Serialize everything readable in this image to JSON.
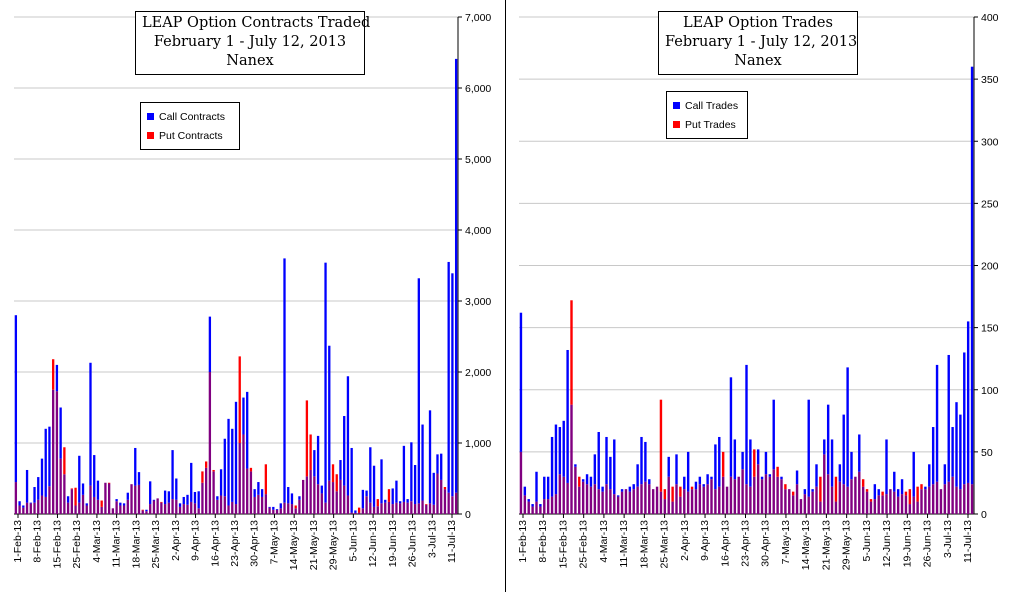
{
  "colors": {
    "call": "#0000ff",
    "put": "#ff0000",
    "overlap": "#800080",
    "grid": "#c8c8c8"
  },
  "chart_data": [
    {
      "type": "bar",
      "title_lines": [
        "LEAP Option Contracts Traded",
        "February 1 - July 12, 2013",
        "Nanex"
      ],
      "legend": {
        "placement": "top-left",
        "entries": [
          "Call Contracts",
          "Put Contracts"
        ]
      },
      "ylim": [
        0,
        7000
      ],
      "yticks": [
        "0",
        "1,000",
        "2,000",
        "3,000",
        "4,000",
        "5,000",
        "6,000",
        "7,000"
      ],
      "ytick_values": [
        0,
        1000,
        2000,
        3000,
        4000,
        5000,
        6000,
        7000
      ],
      "xtick_labels": [
        "1-Feb-13",
        "8-Feb-13",
        "15-Feb-13",
        "25-Feb-13",
        "4-Mar-13",
        "11-Mar-13",
        "18-Mar-13",
        "25-Mar-13",
        "2-Apr-13",
        "9-Apr-13",
        "16-Apr-13",
        "23-Apr-13",
        "30-Apr-13",
        "7-May-13",
        "14-May-13",
        "21-May-13",
        "29-May-13",
        "5-Jun-13",
        "12-Jun-13",
        "19-Jun-13",
        "26-Jun-13",
        "3-Jul-13",
        "11-Jul-13"
      ],
      "grid": true,
      "series": [
        {
          "name": "Call Contracts",
          "values": [
            2800,
            180,
            120,
            620,
            160,
            380,
            520,
            780,
            1200,
            1230,
            1750,
            2100,
            1500,
            560,
            250,
            350,
            120,
            820,
            430,
            150,
            2130,
            830,
            470,
            100,
            440,
            430,
            80,
            210,
            160,
            150,
            300,
            420,
            930,
            590,
            50,
            60,
            460,
            200,
            220,
            160,
            330,
            320,
            900,
            500,
            150,
            240,
            270,
            720,
            310,
            320,
            440,
            650,
            2780,
            600,
            250,
            630,
            1060,
            1340,
            1200,
            1580,
            1000,
            1640,
            1720,
            600,
            350,
            450,
            350,
            280,
            100,
            100,
            70,
            150,
            3600,
            380,
            290,
            80,
            250,
            480,
            530,
            620,
            900,
            1100,
            400,
            3540,
            2370,
            450,
            320,
            760,
            1380,
            1940,
            930,
            50,
            20,
            340,
            330,
            940,
            680,
            110,
            770,
            200,
            170,
            360,
            470,
            180,
            960,
            210,
            1010,
            690,
            3320,
            1260,
            130,
            1460,
            580,
            840,
            850,
            350,
            3550,
            3390,
            6410
          ]
        },
        {
          "name": "Put Contracts",
          "values": [
            450,
            120,
            90,
            160,
            150,
            160,
            200,
            260,
            240,
            390,
            2180,
            1730,
            780,
            940,
            160,
            360,
            370,
            160,
            270,
            120,
            400,
            240,
            200,
            190,
            440,
            440,
            80,
            180,
            120,
            120,
            200,
            420,
            400,
            410,
            60,
            40,
            140,
            190,
            220,
            170,
            140,
            160,
            210,
            200,
            100,
            140,
            130,
            170,
            150,
            80,
            600,
            740,
            2000,
            620,
            200,
            260,
            250,
            120,
            170,
            140,
            2220,
            1120,
            640,
            650,
            240,
            270,
            240,
            700,
            90,
            60,
            60,
            80,
            160,
            150,
            140,
            120,
            200,
            480,
            1600,
            1120,
            530,
            420,
            290,
            160,
            470,
            700,
            560,
            480,
            400,
            260,
            20,
            15,
            90,
            80,
            250,
            160,
            100,
            210,
            150,
            160,
            350,
            140,
            160,
            150,
            170,
            160,
            180,
            140,
            150,
            190,
            140,
            150,
            130,
            570,
            480,
            380,
            300,
            250,
            300
          ]
        }
      ]
    },
    {
      "type": "bar",
      "title_lines": [
        "LEAP Option Trades",
        "February 1 - July 12, 2013",
        "Nanex"
      ],
      "legend": {
        "placement": "top-left",
        "entries": [
          "Call Trades",
          "Put Trades"
        ]
      },
      "ylim": [
        0,
        400
      ],
      "yticks": [
        "0",
        "50",
        "100",
        "150",
        "200",
        "250",
        "300",
        "350",
        "400"
      ],
      "ytick_values": [
        0,
        50,
        100,
        150,
        200,
        250,
        300,
        350,
        400
      ],
      "xtick_labels": [
        "1-Feb-13",
        "8-Feb-13",
        "15-Feb-13",
        "25-Feb-13",
        "4-Mar-13",
        "11-Mar-13",
        "18-Mar-13",
        "25-Mar-13",
        "2-Apr-13",
        "9-Apr-13",
        "16-Apr-13",
        "23-Apr-13",
        "30-Apr-13",
        "7-May-13",
        "14-May-13",
        "21-May-13",
        "29-May-13",
        "5-Jun-13",
        "12-Jun-13",
        "19-Jun-13",
        "26-Jun-13",
        "3-Jul-13",
        "11-Jul-13"
      ],
      "grid": true,
      "series": [
        {
          "name": "Call Trades",
          "values": [
            162,
            22,
            12,
            8,
            34,
            8,
            30,
            30,
            62,
            72,
            70,
            75,
            132,
            88,
            40,
            22,
            28,
            32,
            30,
            48,
            66,
            22,
            62,
            46,
            60,
            15,
            20,
            20,
            22,
            24,
            40,
            62,
            58,
            28,
            20,
            22,
            18,
            12,
            46,
            10,
            48,
            14,
            30,
            50,
            20,
            26,
            30,
            24,
            32,
            30,
            56,
            62,
            30,
            22,
            110,
            60,
            30,
            50,
            120,
            60,
            30,
            52,
            30,
            50,
            32,
            92,
            30,
            30,
            20,
            20,
            15,
            35,
            12,
            20,
            92,
            20,
            40,
            10,
            60,
            88,
            60,
            10,
            40,
            80,
            118,
            50,
            30,
            64,
            22,
            18,
            10,
            24,
            20,
            15,
            60,
            20,
            34,
            20,
            28,
            15,
            8,
            50,
            10,
            20,
            22,
            40,
            70,
            120,
            20,
            40,
            128,
            70,
            90,
            80,
            130,
            155,
            360
          ]
        },
        {
          "name": "Put Trades",
          "values": [
            50,
            15,
            10,
            6,
            10,
            6,
            12,
            12,
            14,
            16,
            32,
            30,
            25,
            172,
            38,
            30,
            26,
            24,
            22,
            24,
            20,
            18,
            24,
            20,
            16,
            14,
            18,
            20,
            18,
            20,
            22,
            24,
            26,
            24,
            20,
            22,
            92,
            20,
            30,
            22,
            24,
            22,
            20,
            18,
            22,
            20,
            24,
            22,
            24,
            28,
            20,
            22,
            50,
            22,
            30,
            28,
            30,
            36,
            24,
            22,
            52,
            40,
            28,
            32,
            30,
            36,
            38,
            28,
            24,
            20,
            18,
            24,
            12,
            16,
            14,
            18,
            22,
            30,
            48,
            32,
            22,
            30,
            26,
            24,
            22,
            28,
            30,
            34,
            28,
            20,
            12,
            12,
            15,
            18,
            16,
            20,
            18,
            14,
            16,
            18,
            20,
            14,
            22,
            24,
            20,
            22,
            24,
            26,
            20,
            24,
            26,
            30,
            22,
            20,
            24,
            25,
            24
          ]
        }
      ]
    }
  ]
}
